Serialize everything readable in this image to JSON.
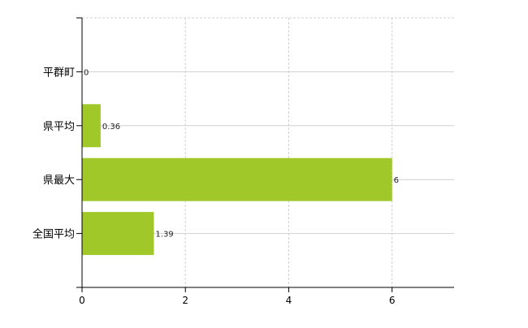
{
  "chart_data": {
    "type": "bar",
    "orientation": "horizontal",
    "title": "",
    "xlabel": "",
    "ylabel": "",
    "categories": [
      "平群町",
      "県平均",
      "県最大",
      "全国平均"
    ],
    "values": [
      0,
      0.36,
      6,
      1.39
    ],
    "value_labels": [
      "0",
      "0.36",
      "6",
      "1.39"
    ],
    "xlim": [
      0,
      7.2
    ],
    "x_ticks": [
      0,
      2,
      4,
      6
    ],
    "x_tick_labels": [
      "0",
      "2",
      "4",
      "6"
    ],
    "grid": true,
    "legend": "none",
    "colors": {
      "bar": "#a0c828",
      "grid": "#d0d0d0",
      "axis": "#000000",
      "text": "#222222"
    }
  }
}
